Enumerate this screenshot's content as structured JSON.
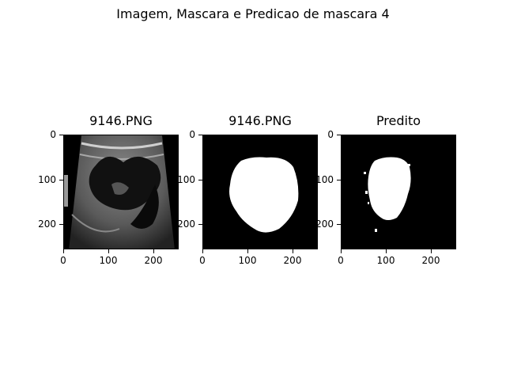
{
  "figure": {
    "suptitle": "Imagem, Mascara e Predicao de mascara 4"
  },
  "panels": [
    {
      "title": "9146.PNG",
      "image_kind": "ultrasound",
      "xticks": [
        "0",
        "100",
        "200"
      ],
      "yticks": [
        "0",
        "100",
        "200"
      ]
    },
    {
      "title": "9146.PNG",
      "image_kind": "ground-truth-mask",
      "xticks": [
        "0",
        "100",
        "200"
      ],
      "yticks": [
        "0",
        "100",
        "200"
      ]
    },
    {
      "title": "Predito",
      "image_kind": "predicted-mask",
      "xticks": [
        "0",
        "100",
        "200"
      ],
      "yticks": [
        "0",
        "100",
        "200"
      ]
    }
  ]
}
